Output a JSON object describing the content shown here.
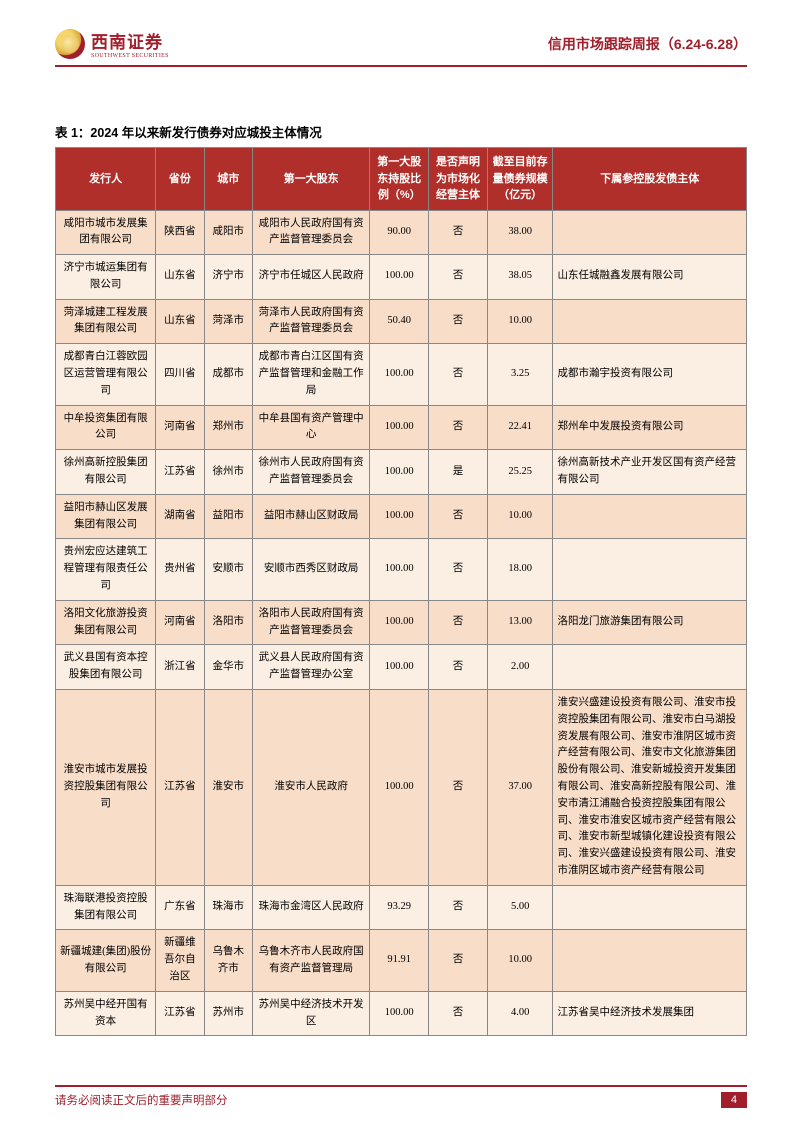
{
  "header": {
    "logo_cn": "西南证券",
    "logo_en": "SOUTHWEST SECURITIES",
    "title": "信用市场跟踪周报（6.24-6.28）"
  },
  "table": {
    "title": "表 1：2024 年以来新发行债券对应城投主体情况",
    "columns": [
      {
        "label": "发行人",
        "w": "14.5%"
      },
      {
        "label": "省份",
        "w": "7%"
      },
      {
        "label": "城市",
        "w": "7%"
      },
      {
        "label": "第一大股东",
        "w": "17%"
      },
      {
        "label": "第一大股东持股比例（%）",
        "w": "8.5%"
      },
      {
        "label": "是否声明为市场化经营主体",
        "w": "8.5%"
      },
      {
        "label": "截至目前存量债券规模（亿元）",
        "w": "9.5%"
      },
      {
        "label": "下属参控股发债主体",
        "w": "28%"
      }
    ],
    "rows": [
      {
        "c": [
          "咸阳市城市发展集团有限公司",
          "陕西省",
          "咸阳市",
          "咸阳市人民政府国有资产监督管理委员会",
          "90.00",
          "否",
          "38.00",
          ""
        ]
      },
      {
        "c": [
          "济宁市城运集团有限公司",
          "山东省",
          "济宁市",
          "济宁市任城区人民政府",
          "100.00",
          "否",
          "38.05",
          "山东任城融鑫发展有限公司"
        ]
      },
      {
        "c": [
          "菏泽城建工程发展集团有限公司",
          "山东省",
          "菏泽市",
          "菏泽市人民政府国有资产监督管理委员会",
          "50.40",
          "否",
          "10.00",
          ""
        ]
      },
      {
        "c": [
          "成都青白江蓉欧园区运营管理有限公司",
          "四川省",
          "成都市",
          "成都市青白江区国有资产监督管理和金融工作局",
          "100.00",
          "否",
          "3.25",
          "成都市瀚宇投资有限公司"
        ]
      },
      {
        "c": [
          "中牟投资集团有限公司",
          "河南省",
          "郑州市",
          "中牟县国有资产管理中心",
          "100.00",
          "否",
          "22.41",
          "郑州牟中发展投资有限公司"
        ]
      },
      {
        "c": [
          "徐州高新控股集团有限公司",
          "江苏省",
          "徐州市",
          "徐州市人民政府国有资产监督管理委员会",
          "100.00",
          "是",
          "25.25",
          "徐州高新技术产业开发区国有资产经营有限公司"
        ]
      },
      {
        "c": [
          "益阳市赫山区发展集团有限公司",
          "湖南省",
          "益阳市",
          "益阳市赫山区财政局",
          "100.00",
          "否",
          "10.00",
          ""
        ]
      },
      {
        "c": [
          "贵州宏应达建筑工程管理有限责任公司",
          "贵州省",
          "安顺市",
          "安顺市西秀区财政局",
          "100.00",
          "否",
          "18.00",
          ""
        ]
      },
      {
        "c": [
          "洛阳文化旅游投资集团有限公司",
          "河南省",
          "洛阳市",
          "洛阳市人民政府国有资产监督管理委员会",
          "100.00",
          "否",
          "13.00",
          "洛阳龙门旅游集团有限公司"
        ]
      },
      {
        "c": [
          "武义县国有资本控股集团有限公司",
          "浙江省",
          "金华市",
          "武义县人民政府国有资产监督管理办公室",
          "100.00",
          "否",
          "2.00",
          ""
        ]
      },
      {
        "c": [
          "淮安市城市发展投资控股集团有限公司",
          "江苏省",
          "淮安市",
          "淮安市人民政府",
          "100.00",
          "否",
          "37.00",
          "淮安兴盛建设投资有限公司、淮安市投资控股集团有限公司、淮安市白马湖投资发展有限公司、淮安市淮阴区城市资产经营有限公司、淮安市文化旅游集团股份有限公司、淮安新城投资开发集团有限公司、淮安高新控股有限公司、淮安市清江浦融合投资控股集团有限公司、淮安市淮安区城市资产经营有限公司、淮安市新型城镇化建设投资有限公司、淮安兴盛建设投资有限公司、淮安市淮阴区城市资产经营有限公司"
        ]
      },
      {
        "c": [
          "珠海联港投资控股集团有限公司",
          "广东省",
          "珠海市",
          "珠海市金湾区人民政府",
          "93.29",
          "否",
          "5.00",
          ""
        ]
      },
      {
        "c": [
          "新疆城建(集团)股份有限公司",
          "新疆维吾尔自治区",
          "乌鲁木齐市",
          "乌鲁木齐市人民政府国有资产监督管理局",
          "91.91",
          "否",
          "10.00",
          ""
        ]
      },
      {
        "c": [
          "苏州吴中经开国有资本",
          "江苏省",
          "苏州市",
          "苏州吴中经济技术开发区",
          "100.00",
          "否",
          "4.00",
          "江苏省吴中经济技术发展集团"
        ]
      }
    ]
  },
  "footer": {
    "text": "请务必阅读正文后的重要声明部分",
    "page": "4"
  }
}
